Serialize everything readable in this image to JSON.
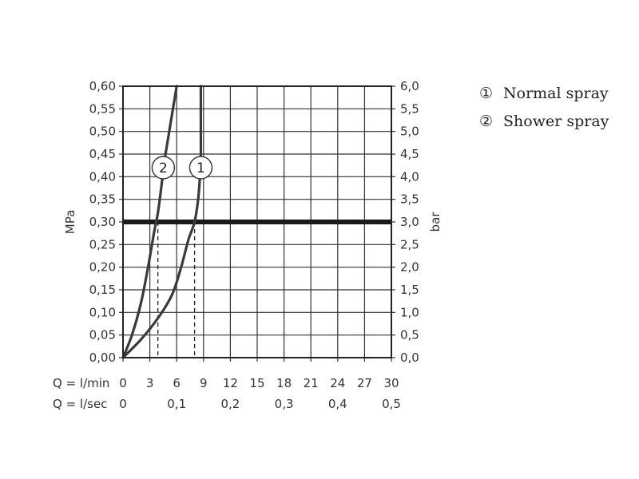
{
  "chart_data": {
    "type": "line",
    "ylabel_left": "MPa",
    "ylabel_right": "bar",
    "y_left_ticks": [
      "0,00",
      "0,05",
      "0,10",
      "0,15",
      "0,20",
      "0,25",
      "0,30",
      "0,35",
      "0,40",
      "0,45",
      "0,50",
      "0,55",
      "0,60"
    ],
    "y_right_ticks": [
      "0,0",
      "0,5",
      "1,0",
      "1,5",
      "2,0",
      "2,5",
      "3,0",
      "3,5",
      "4,0",
      "4,5",
      "5,0",
      "5,5",
      "6,0"
    ],
    "ylim": [
      0,
      0.6
    ],
    "xlim": [
      0,
      30
    ],
    "x_row1": {
      "label": "Q = l/min",
      "ticks": [
        {
          "v": 0,
          "t": "0"
        },
        {
          "v": 3,
          "t": "3"
        },
        {
          "v": 6,
          "t": "6"
        },
        {
          "v": 9,
          "t": "9"
        },
        {
          "v": 12,
          "t": "12"
        },
        {
          "v": 15,
          "t": "15"
        },
        {
          "v": 18,
          "t": "18"
        },
        {
          "v": 21,
          "t": "21"
        },
        {
          "v": 24,
          "t": "24"
        },
        {
          "v": 27,
          "t": "27"
        },
        {
          "v": 30,
          "t": "30"
        }
      ]
    },
    "x_row2": {
      "label": "Q = l/sec",
      "ticks": [
        {
          "v": 0,
          "t": "0"
        },
        {
          "v": 6,
          "t": "0,1"
        },
        {
          "v": 12,
          "t": "0,2"
        },
        {
          "v": 18,
          "t": "0,3"
        },
        {
          "v": 24,
          "t": "0,4"
        },
        {
          "v": 30,
          "t": "0,5"
        }
      ]
    },
    "grid": true,
    "reference_line": {
      "y": 0.3
    },
    "series": [
      {
        "name": "Normal spray",
        "marker": "1",
        "marker_at": {
          "x": 8.7,
          "y": 0.42
        },
        "points": [
          [
            0,
            0
          ],
          [
            2,
            0.04
          ],
          [
            4,
            0.09
          ],
          [
            5.5,
            0.14
          ],
          [
            6.5,
            0.2
          ],
          [
            7.3,
            0.26
          ],
          [
            8,
            0.3
          ],
          [
            8.4,
            0.35
          ],
          [
            8.6,
            0.4
          ],
          [
            8.7,
            0.45
          ],
          [
            8.7,
            0.5
          ],
          [
            8.7,
            0.55
          ],
          [
            8.7,
            0.6
          ]
        ]
      },
      {
        "name": "Shower spray",
        "marker": "2",
        "marker_at": {
          "x": 4.5,
          "y": 0.42
        },
        "points": [
          [
            0,
            0
          ],
          [
            1,
            0.05
          ],
          [
            2,
            0.12
          ],
          [
            2.8,
            0.2
          ],
          [
            3.5,
            0.28
          ],
          [
            3.9,
            0.32
          ],
          [
            4.3,
            0.38
          ],
          [
            4.6,
            0.43
          ],
          [
            5,
            0.48
          ],
          [
            5.5,
            0.54
          ],
          [
            6,
            0.6
          ]
        ]
      }
    ],
    "dashed_drops": [
      {
        "x": 3.9,
        "y": 0.3
      },
      {
        "x": 8.0,
        "y": 0.3
      }
    ]
  },
  "legend": [
    {
      "num": "①",
      "label": "Normal spray"
    },
    {
      "num": "②",
      "label": "Shower spray"
    }
  ]
}
